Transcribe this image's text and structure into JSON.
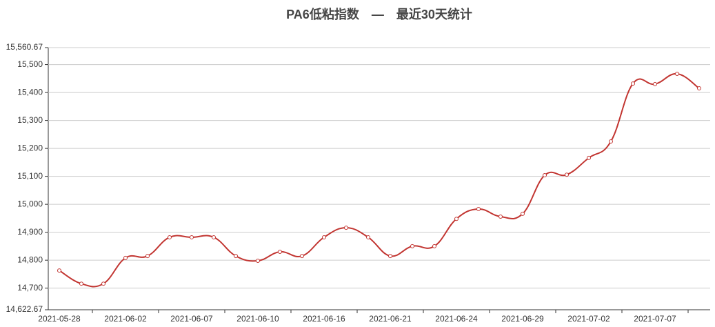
{
  "chart_data": {
    "type": "line",
    "title": "PA6低粘指数　—　最近30天统计",
    "categories": [
      "2021-05-28",
      null,
      null,
      "2021-06-02",
      null,
      null,
      "2021-06-07",
      null,
      null,
      "2021-06-10",
      null,
      null,
      "2021-06-16",
      null,
      null,
      "2021-06-21",
      null,
      null,
      "2021-06-24",
      null,
      null,
      "2021-06-29",
      null,
      null,
      "2021-07-02",
      null,
      null,
      "2021-07-07",
      null,
      null
    ],
    "values": [
      14763,
      14716,
      14716,
      14808,
      14815,
      14882,
      14882,
      14882,
      14815,
      14798,
      14830,
      14815,
      14882,
      14916,
      14882,
      14815,
      14850,
      14850,
      14948,
      14983,
      14956,
      14966,
      15104,
      15106,
      15166,
      15225,
      15432,
      15430,
      15467,
      15415
    ],
    "color": "#c23531",
    "ylim": [
      14622.67,
      15560.67
    ],
    "yticks": [
      {
        "value": 14622.67,
        "label": "14,622.67"
      },
      {
        "value": 14700,
        "label": "14,700"
      },
      {
        "value": 14800,
        "label": "14,800"
      },
      {
        "value": 14900,
        "label": "14,900"
      },
      {
        "value": 15000,
        "label": "15,000"
      },
      {
        "value": 15100,
        "label": "15,100"
      },
      {
        "value": 15200,
        "label": "15,200"
      },
      {
        "value": 15300,
        "label": "15,300"
      },
      {
        "value": 15400,
        "label": "15,400"
      },
      {
        "value": 15500,
        "label": "15,500"
      },
      {
        "value": 15560.67,
        "label": "15,560.67"
      }
    ],
    "grid": true,
    "smooth": true
  }
}
